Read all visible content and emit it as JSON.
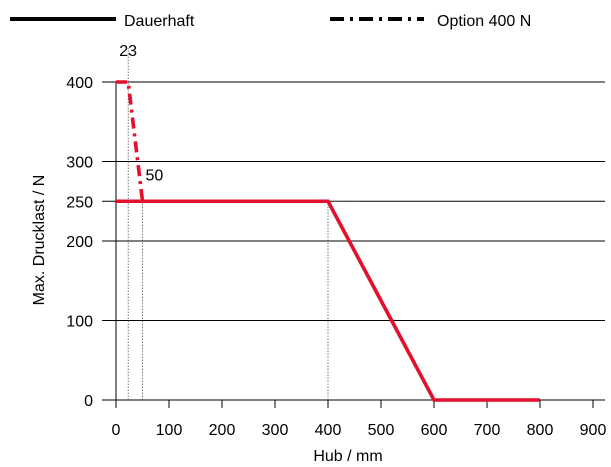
{
  "chart_data": {
    "type": "line",
    "title": "",
    "xlabel": "Hub / mm",
    "ylabel": "Max. Drucklast / N",
    "xlim": [
      0,
      900
    ],
    "ylim": [
      0,
      400
    ],
    "x_ticks": [
      0,
      100,
      200,
      300,
      400,
      500,
      600,
      700,
      800,
      900
    ],
    "y_ticks": [
      0,
      100,
      200,
      250,
      300,
      400
    ],
    "grid": "horizontal",
    "legend_placement": "top",
    "legend": [
      {
        "label": "Dauerhaft",
        "style": "solid",
        "color": "#000000"
      },
      {
        "label": "Option 400 N",
        "style": "dash-dot",
        "color": "#000000"
      }
    ],
    "series": [
      {
        "name": "Dauerhaft",
        "style": "solid",
        "color": "#e30f2d",
        "points": [
          [
            0,
            250
          ],
          [
            400,
            250
          ],
          [
            600,
            0
          ],
          [
            800,
            0
          ]
        ]
      },
      {
        "name": "Option 400 N",
        "style": "dash-dot",
        "color": "#e30f2d",
        "points": [
          [
            0,
            400
          ],
          [
            23,
            400
          ],
          [
            50,
            250
          ]
        ]
      }
    ],
    "reference_lines": [
      {
        "type": "vertical",
        "x": 23,
        "y_from": 0,
        "y_to": 400
      },
      {
        "type": "vertical",
        "x": 50,
        "y_from": 0,
        "y_to": 250
      },
      {
        "type": "vertical",
        "x": 400,
        "y_from": 0,
        "y_to": 250
      },
      {
        "type": "horizontal",
        "y": 250,
        "x_from": 400,
        "x_to": 430
      }
    ],
    "annotations": [
      {
        "text": "23",
        "x": 23,
        "y": 400
      },
      {
        "text": "50",
        "x": 50,
        "y": 250
      }
    ]
  }
}
